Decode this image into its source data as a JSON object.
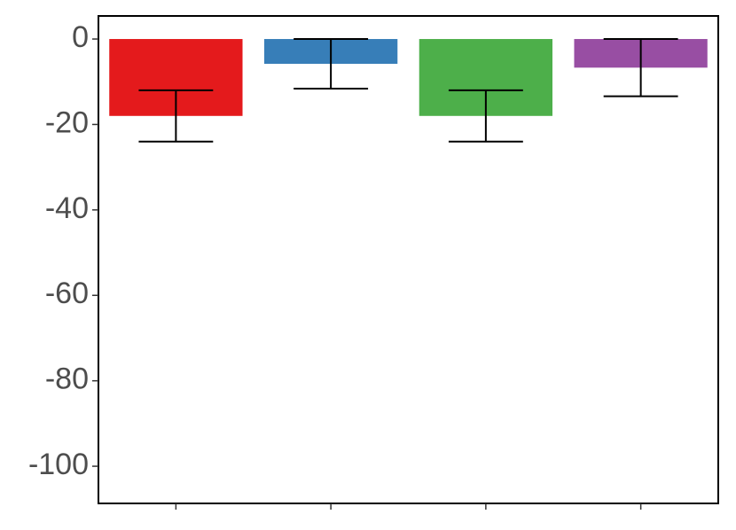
{
  "chart_data": {
    "type": "bar",
    "categories": [
      null,
      null,
      null,
      null
    ],
    "values": [
      -18,
      -5.8,
      -18,
      -6.7
    ],
    "errors": [
      6,
      5.8,
      6,
      6.7
    ],
    "colors": [
      "#e41a1c",
      "#377eb8",
      "#4daf4a",
      "#984ea3"
    ],
    "ylim": [
      -108.7,
      5.4
    ],
    "yticks": [
      0,
      -20,
      -40,
      -60,
      -80,
      -100
    ],
    "grid": false
  }
}
